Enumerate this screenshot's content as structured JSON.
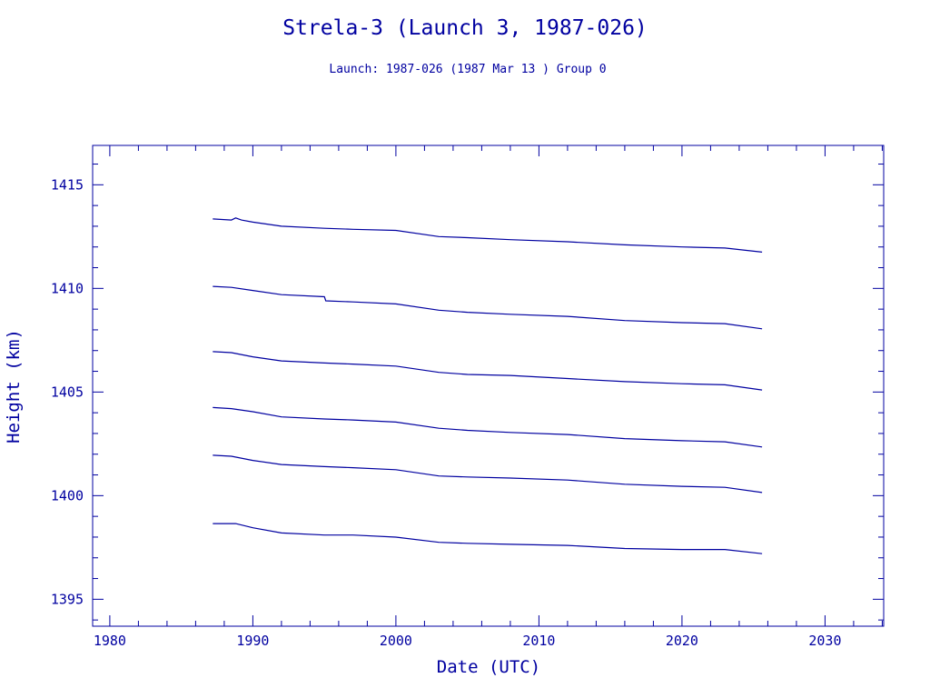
{
  "chart_data": {
    "type": "line",
    "title": "Strela-3 (Launch 3, 1987-026)",
    "subtitle": "Launch: 1987-026  (1987 Mar 13 )  Group 0",
    "xlabel": "Date (UTC)",
    "ylabel": "Height (km)",
    "xlim": [
      1978.8,
      2034.1
    ],
    "ylim": [
      1393.7,
      1416.9
    ],
    "xticks": [
      1980,
      1990,
      2000,
      2010,
      2020,
      2030
    ],
    "yticks": [
      1395,
      1400,
      1405,
      1410,
      1415
    ],
    "grid": false,
    "color": "#0000a0",
    "series": [
      {
        "x": [
          1987.2,
          1988.5,
          1988.8,
          1989.2,
          1990.0,
          1992.0,
          1995.0,
          1997.0,
          2000.0,
          2003.0,
          2005.0,
          2008.0,
          2012.0,
          2016.0,
          2020.0,
          2023.0,
          2025.6
        ],
        "y": [
          1413.35,
          1413.3,
          1413.4,
          1413.3,
          1413.2,
          1413.0,
          1412.9,
          1412.85,
          1412.8,
          1412.5,
          1412.45,
          1412.35,
          1412.25,
          1412.1,
          1412.0,
          1411.95,
          1411.75
        ]
      },
      {
        "x": [
          1987.2,
          1988.5,
          1990.0,
          1992.0,
          1995.0,
          1995.1,
          1997.0,
          2000.0,
          2003.0,
          2005.0,
          2008.0,
          2012.0,
          2016.0,
          2020.0,
          2023.0,
          2025.6
        ],
        "y": [
          1410.1,
          1410.05,
          1409.9,
          1409.7,
          1409.6,
          1409.4,
          1409.35,
          1409.25,
          1408.95,
          1408.85,
          1408.75,
          1408.65,
          1408.45,
          1408.35,
          1408.3,
          1408.05
        ]
      },
      {
        "x": [
          1987.2,
          1988.5,
          1990.0,
          1992.0,
          1995.0,
          1997.0,
          2000.0,
          2003.0,
          2005.0,
          2008.0,
          2012.0,
          2016.0,
          2020.0,
          2023.0,
          2025.6
        ],
        "y": [
          1406.95,
          1406.9,
          1406.7,
          1406.5,
          1406.4,
          1406.35,
          1406.25,
          1405.95,
          1405.85,
          1405.8,
          1405.65,
          1405.5,
          1405.4,
          1405.35,
          1405.1
        ]
      },
      {
        "x": [
          1987.2,
          1988.5,
          1990.0,
          1992.0,
          1995.0,
          1997.0,
          2000.0,
          2003.0,
          2005.0,
          2008.0,
          2012.0,
          2016.0,
          2020.0,
          2023.0,
          2025.6
        ],
        "y": [
          1404.25,
          1404.2,
          1404.05,
          1403.8,
          1403.7,
          1403.65,
          1403.55,
          1403.25,
          1403.15,
          1403.05,
          1402.95,
          1402.75,
          1402.65,
          1402.6,
          1402.35
        ]
      },
      {
        "x": [
          1987.2,
          1988.5,
          1990.0,
          1992.0,
          1995.0,
          1997.0,
          2000.0,
          2003.0,
          2005.0,
          2008.0,
          2012.0,
          2016.0,
          2020.0,
          2023.0,
          2025.6
        ],
        "y": [
          1401.95,
          1401.9,
          1401.7,
          1401.5,
          1401.4,
          1401.35,
          1401.25,
          1400.95,
          1400.9,
          1400.85,
          1400.75,
          1400.55,
          1400.45,
          1400.4,
          1400.15
        ]
      },
      {
        "x": [
          1987.2,
          1988.8,
          1990.0,
          1992.0,
          1995.0,
          1997.0,
          2000.0,
          2003.0,
          2005.0,
          2008.0,
          2012.0,
          2016.0,
          2020.0,
          2023.0,
          2025.6
        ],
        "y": [
          1398.65,
          1398.65,
          1398.45,
          1398.2,
          1398.1,
          1398.1,
          1398.0,
          1397.75,
          1397.7,
          1397.65,
          1397.6,
          1397.45,
          1397.4,
          1397.4,
          1397.2
        ]
      }
    ]
  }
}
